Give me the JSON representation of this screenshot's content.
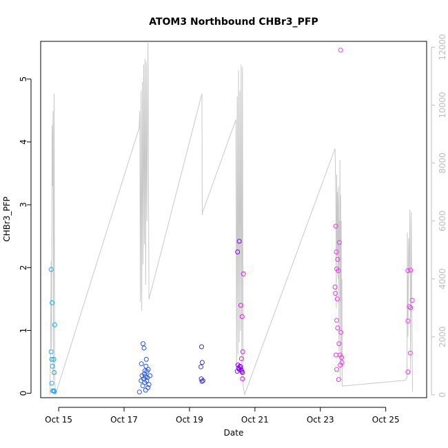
{
  "chart_data": {
    "type": "scatter",
    "title": "ATOM3 Northbound CHBr3_PFP",
    "xlabel": "Date",
    "ylabel": "CHBr3_PFP",
    "x_unit": "days (October)",
    "xlim": [
      14.45,
      26.25
    ],
    "ylim": [
      -0.07,
      5.6
    ],
    "ylim_right": [
      -100,
      12200
    ],
    "x_ticks": [
      {
        "value": 15,
        "label": "Oct 15"
      },
      {
        "value": 17,
        "label": "Oct 17"
      },
      {
        "value": 19,
        "label": "Oct 19"
      },
      {
        "value": 21,
        "label": "Oct 21"
      },
      {
        "value": 23,
        "label": "Oct 23"
      },
      {
        "value": 25,
        "label": "Oct 25"
      }
    ],
    "y_ticks": [
      0,
      1,
      2,
      3,
      4,
      5
    ],
    "y_ticks_right": [
      0,
      2000,
      4000,
      6000,
      8000,
      10000,
      12000
    ],
    "colors": {
      "point_day1": "#1aa3ff",
      "point_day2": "#2255ee",
      "point_day3": "#3333cc",
      "point_day4": "#8800ee",
      "point_day5": "#cc22dd",
      "point_day6": "#ee33ee",
      "altitude_line": "#c8c8c8",
      "axis": "#000000",
      "right_axis": "#bdbdbd"
    },
    "series": [
      {
        "color": "#1aa3ff",
        "points": [
          [
            14.77,
            1.97
          ],
          [
            14.8,
            1.44
          ],
          [
            14.77,
            0.66
          ],
          [
            14.79,
            0.54
          ],
          [
            14.85,
            0.54
          ],
          [
            14.81,
            0.43
          ],
          [
            14.86,
            0.33
          ],
          [
            14.79,
            0.16
          ],
          [
            14.82,
            0.04
          ],
          [
            14.85,
            0.04
          ],
          [
            14.87,
            0.03
          ],
          [
            14.88,
            1.09
          ]
        ]
      },
      {
        "color": "#2255ee",
        "points": [
          [
            17.47,
            0.02
          ],
          [
            17.52,
            0.2
          ],
          [
            17.53,
            0.47
          ],
          [
            17.55,
            0.28
          ],
          [
            17.57,
            0.12
          ],
          [
            17.58,
            0.79
          ],
          [
            17.6,
            0.23
          ],
          [
            17.61,
            0.72
          ],
          [
            17.62,
            0.31
          ],
          [
            17.63,
            0.17
          ],
          [
            17.65,
            0.27
          ],
          [
            17.66,
            0.05
          ],
          [
            17.67,
            0.43
          ],
          [
            17.68,
            0.54
          ],
          [
            17.7,
            0.35
          ],
          [
            17.71,
            0.25
          ],
          [
            17.73,
            0.09
          ],
          [
            17.74,
            0.38
          ],
          [
            17.76,
            0.14
          ],
          [
            17.79,
            0.28
          ],
          [
            17.64,
            0.36
          ],
          [
            17.69,
            0.2
          ]
        ]
      },
      {
        "color": "#3333cc",
        "points": [
          [
            19.37,
            0.74
          ],
          [
            19.35,
            0.42
          ],
          [
            19.39,
            0.49
          ],
          [
            19.36,
            0.23
          ],
          [
            19.38,
            0.19
          ],
          [
            19.41,
            0.2
          ]
        ]
      },
      {
        "color": "#8800ee",
        "points": [
          [
            20.46,
            0.35
          ],
          [
            20.48,
            0.45
          ],
          [
            20.5,
            0.4
          ],
          [
            20.52,
            0.38
          ],
          [
            20.54,
            0.43
          ],
          [
            20.56,
            0.42
          ],
          [
            20.58,
            0.37
          ],
          [
            20.6,
            0.35
          ],
          [
            20.62,
            0.33
          ],
          [
            20.52,
            2.42
          ],
          [
            20.47,
            2.25
          ]
        ]
      },
      {
        "color": "#cc22dd",
        "points": [
          [
            20.57,
            1.4
          ],
          [
            20.59,
            0.55
          ],
          [
            20.61,
            1.22
          ],
          [
            20.63,
            0.66
          ],
          [
            20.65,
            1.9
          ],
          [
            20.62,
            0.23
          ]
        ]
      },
      {
        "color": "#ee33ee",
        "points": [
          [
            23.62,
            5.46
          ],
          [
            23.47,
            2.66
          ],
          [
            23.49,
            2.25
          ],
          [
            23.53,
            2.13
          ],
          [
            23.5,
            1.98
          ],
          [
            23.55,
            1.95
          ],
          [
            23.58,
            2.4
          ],
          [
            23.45,
            1.69
          ],
          [
            23.46,
            1.59
          ],
          [
            23.52,
            1.5
          ],
          [
            23.5,
            1.16
          ],
          [
            23.53,
            1.04
          ],
          [
            23.57,
            0.79
          ],
          [
            23.63,
            0.97
          ],
          [
            23.48,
            0.61
          ],
          [
            23.6,
            0.61
          ],
          [
            23.65,
            0.57
          ],
          [
            23.61,
            0.45
          ],
          [
            23.66,
            0.49
          ],
          [
            23.5,
            0.38
          ],
          [
            23.56,
            0.22
          ],
          [
            25.68,
            1.95
          ],
          [
            25.76,
            1.96
          ],
          [
            25.72,
            1.38
          ],
          [
            25.76,
            1.36
          ],
          [
            25.81,
            1.48
          ],
          [
            25.68,
            1.15
          ],
          [
            25.75,
            0.64
          ],
          [
            25.68,
            0.34
          ]
        ]
      }
    ],
    "altitude_series": {
      "color": "#c8c8c8",
      "points": [
        [
          14.73,
          0
        ],
        [
          14.75,
          1200
        ],
        [
          14.77,
          4600
        ],
        [
          14.78,
          1600
        ],
        [
          14.8,
          9300
        ],
        [
          14.81,
          7200
        ],
        [
          14.83,
          9800
        ],
        [
          14.84,
          500
        ],
        [
          14.86,
          10400
        ],
        [
          14.88,
          600
        ],
        [
          14.9,
          0
        ],
        [
          17.43,
          9100
        ],
        [
          17.46,
          9200
        ],
        [
          17.48,
          9800
        ],
        [
          17.5,
          3200
        ],
        [
          17.52,
          10500
        ],
        [
          17.54,
          2900
        ],
        [
          17.56,
          10800
        ],
        [
          17.58,
          4500
        ],
        [
          17.6,
          11400
        ],
        [
          17.62,
          5200
        ],
        [
          17.64,
          11600
        ],
        [
          17.66,
          3800
        ],
        [
          17.68,
          11500
        ],
        [
          17.7,
          6000
        ],
        [
          17.73,
          12200
        ],
        [
          17.76,
          3300
        ],
        [
          19.38,
          10400
        ],
        [
          19.39,
          6200
        ],
        [
          19.4,
          6300
        ],
        [
          20.42,
          9500
        ],
        [
          20.44,
          1000
        ],
        [
          20.46,
          10300
        ],
        [
          20.48,
          1400
        ],
        [
          20.5,
          11200
        ],
        [
          20.52,
          1800
        ],
        [
          20.54,
          10500
        ],
        [
          20.56,
          2200
        ],
        [
          20.58,
          11400
        ],
        [
          20.6,
          500
        ],
        [
          20.62,
          11300
        ],
        [
          20.64,
          300
        ],
        [
          20.66,
          200
        ],
        [
          20.68,
          0
        ],
        [
          23.45,
          8500
        ],
        [
          23.47,
          7000
        ],
        [
          23.48,
          6000
        ],
        [
          23.49,
          3000
        ],
        [
          23.5,
          7600
        ],
        [
          23.51,
          4800
        ],
        [
          23.52,
          7000
        ],
        [
          23.53,
          6500
        ],
        [
          23.54,
          4000
        ],
        [
          23.55,
          7200
        ],
        [
          23.56,
          6400
        ],
        [
          23.57,
          1500
        ],
        [
          23.58,
          6000
        ],
        [
          23.59,
          4900
        ],
        [
          23.6,
          8100
        ],
        [
          23.61,
          500
        ],
        [
          23.62,
          6900
        ],
        [
          23.63,
          3200
        ],
        [
          23.64,
          6000
        ],
        [
          23.65,
          1000
        ],
        [
          23.66,
          4000
        ],
        [
          23.67,
          300
        ],
        [
          25.6,
          500
        ],
        [
          25.65,
          600
        ],
        [
          25.66,
          5600
        ],
        [
          25.68,
          2000
        ],
        [
          25.7,
          5400
        ],
        [
          25.72,
          4200
        ],
        [
          25.74,
          6400
        ],
        [
          25.76,
          800
        ],
        [
          25.78,
          6300
        ],
        [
          25.8,
          2800
        ],
        [
          25.82,
          100
        ]
      ]
    }
  }
}
